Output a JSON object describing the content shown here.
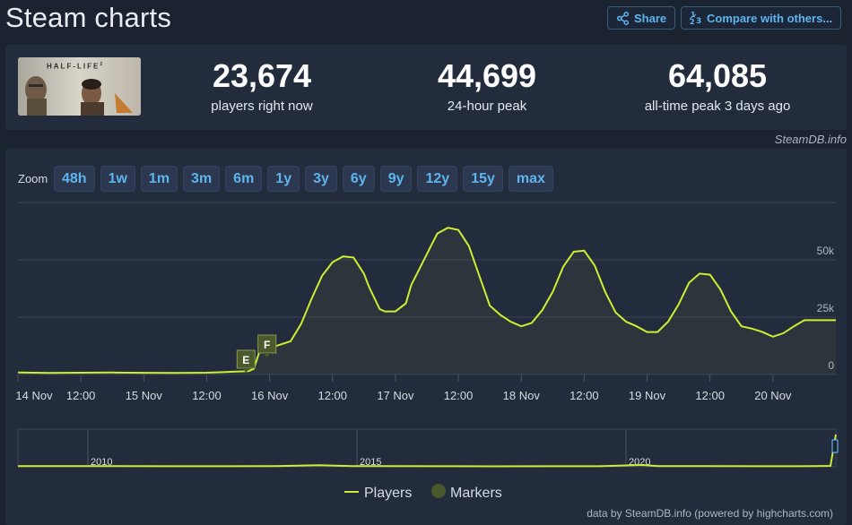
{
  "header": {
    "title": "Steam charts",
    "share_label": "Share",
    "compare_label": "Compare with others..."
  },
  "game": {
    "logo_text": "HALF-LIFE",
    "logo_superscript": "2"
  },
  "stats": [
    {
      "value": "23,674",
      "label": "players right now"
    },
    {
      "value": "44,699",
      "label": "24-hour peak"
    },
    {
      "value": "64,085",
      "label": "all-time peak 3 days ago"
    }
  ],
  "credit": "SteamDB.info",
  "zoom": {
    "label": "Zoom",
    "options": [
      "48h",
      "1w",
      "1m",
      "3m",
      "6m",
      "1y",
      "3y",
      "6y",
      "9y",
      "12y",
      "15y",
      "max"
    ]
  },
  "footer": "data by SteamDB.info (powered by highcharts.com)",
  "colors": {
    "line": "#ccee33",
    "marker": "#4a5a2c",
    "grid": "#3a4354",
    "accent": "#5fb4ee"
  },
  "chart_data": {
    "type": "line",
    "title": "",
    "xlabel": "",
    "ylabel": "",
    "x_unit": "hours since 14 Nov 00:00",
    "x_ticks": [
      {
        "x": 0,
        "label": "14 Nov"
      },
      {
        "x": 12,
        "label": "12:00"
      },
      {
        "x": 24,
        "label": "15 Nov"
      },
      {
        "x": 36,
        "label": "12:00"
      },
      {
        "x": 48,
        "label": "16 Nov"
      },
      {
        "x": 60,
        "label": "12:00"
      },
      {
        "x": 72,
        "label": "17 Nov"
      },
      {
        "x": 84,
        "label": "12:00"
      },
      {
        "x": 96,
        "label": "18 Nov"
      },
      {
        "x": 108,
        "label": "12:00"
      },
      {
        "x": 120,
        "label": "19 Nov"
      },
      {
        "x": 132,
        "label": "12:00"
      },
      {
        "x": 144,
        "label": "20 Nov"
      }
    ],
    "y_ticks": [
      {
        "y": 0,
        "label": "0"
      },
      {
        "y": 25000,
        "label": "25k"
      },
      {
        "y": 50000,
        "label": "50k"
      }
    ],
    "xlim": [
      0,
      156
    ],
    "ylim": [
      0,
      75000
    ],
    "grid": true,
    "legend_position": "bottom-center",
    "series": [
      {
        "name": "Players",
        "x": [
          0,
          6,
          12,
          18,
          24,
          30,
          36,
          41,
          44,
          45,
          46,
          48,
          50,
          52,
          54,
          56,
          58,
          60,
          62,
          64,
          66,
          67,
          69,
          70,
          72,
          74,
          75,
          77,
          79,
          80,
          82,
          84,
          86,
          88,
          90,
          92,
          94,
          96,
          98,
          100,
          102,
          104,
          106,
          108,
          110,
          112,
          114,
          116,
          118,
          120,
          122,
          124,
          126,
          128,
          130,
          132,
          134,
          136,
          138,
          140,
          142,
          144,
          146,
          148,
          150,
          152,
          154,
          156
        ],
        "values": [
          900,
          700,
          800,
          850,
          750,
          700,
          800,
          1200,
          1500,
          2500,
          9500,
          11500,
          13000,
          14500,
          22000,
          33000,
          43000,
          49000,
          51500,
          51000,
          44000,
          38000,
          28500,
          27500,
          27500,
          31000,
          39000,
          48000,
          57000,
          61500,
          64000,
          63000,
          56000,
          43000,
          30000,
          26000,
          23000,
          21000,
          22500,
          28000,
          36000,
          47000,
          53500,
          54000,
          47500,
          36000,
          27000,
          23000,
          21000,
          18500,
          18500,
          23000,
          30500,
          40000,
          44000,
          43500,
          37000,
          27500,
          21000,
          20000,
          18500,
          16500,
          18000,
          21000,
          23674,
          23674,
          23674,
          23674
        ]
      }
    ],
    "markers": [
      {
        "label": "E",
        "x": 43.5
      },
      {
        "label": "F",
        "x": 47.5
      }
    ],
    "navigator": {
      "x_ticks": [
        {
          "x": 2010,
          "label": "2010"
        },
        {
          "x": 2015,
          "label": "2015"
        },
        {
          "x": 2020,
          "label": "2020"
        }
      ],
      "xlim": [
        2008.7,
        2023.9
      ],
      "ylim": [
        0,
        75000
      ],
      "x": [
        2008.7,
        2009.5,
        2010.5,
        2011.5,
        2012.5,
        2013.5,
        2014.3,
        2014.9,
        2015.5,
        2016.5,
        2017.5,
        2018.5,
        2019.5,
        2020.3,
        2020.6,
        2021.5,
        2022.5,
        2023.5,
        2023.8,
        2023.9
      ],
      "values": [
        1500,
        1200,
        1300,
        1100,
        1000,
        1200,
        3000,
        1500,
        1200,
        1100,
        900,
        1000,
        1100,
        3500,
        1500,
        1200,
        1100,
        1300,
        1800,
        64085
      ]
    },
    "legend": [
      "Players",
      "Markers"
    ]
  }
}
